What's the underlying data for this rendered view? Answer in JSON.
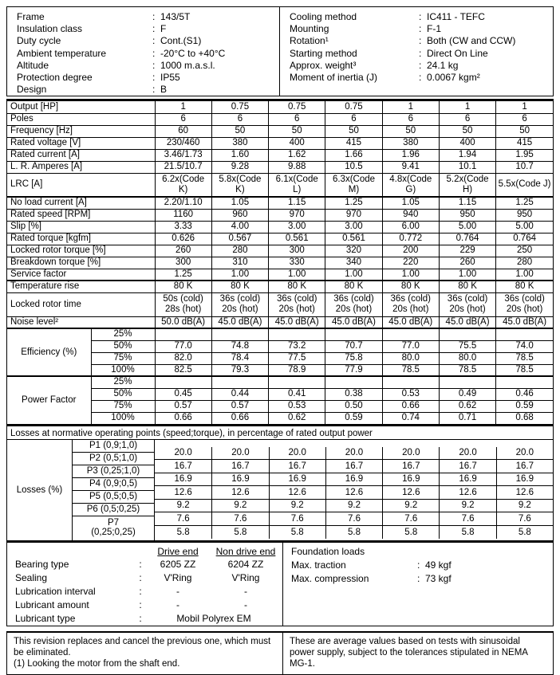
{
  "punct": {
    "colon": ":"
  },
  "info_left": {
    "rows": [
      {
        "label": "Frame",
        "value": "143/5T"
      },
      {
        "label": "Insulation class",
        "value": "F"
      },
      {
        "label": "Duty cycle",
        "value": "Cont.(S1)"
      },
      {
        "label": "Ambient temperature",
        "value": "-20°C to +40°C"
      },
      {
        "label": "Altitude",
        "value": "1000 m.a.s.l."
      },
      {
        "label": "Protection degree",
        "value": "IP55"
      },
      {
        "label": "Design",
        "value": "B"
      }
    ]
  },
  "info_right": {
    "rows": [
      {
        "label": "Cooling method",
        "value": "IC411 - TEFC"
      },
      {
        "label": "Mounting",
        "value": "F-1"
      },
      {
        "label": "Rotation¹",
        "value": "Both (CW and CCW)"
      },
      {
        "label": "Starting method",
        "value": "Direct On Line"
      },
      {
        "label": "Approx. weight³",
        "value": "24.1 kg"
      },
      {
        "label": "Moment of inertia (J)",
        "value": "0.0067 kgm²"
      }
    ]
  },
  "spec_table": {
    "rows": [
      {
        "label": "Output [HP]",
        "values": [
          "1",
          "0.75",
          "0.75",
          "0.75",
          "1",
          "1",
          "1"
        ]
      },
      {
        "label": "Poles",
        "values": [
          "6",
          "6",
          "6",
          "6",
          "6",
          "6",
          "6"
        ]
      },
      {
        "label": "Frequency [Hz]",
        "values": [
          "60",
          "50",
          "50",
          "50",
          "50",
          "50",
          "50"
        ]
      },
      {
        "label": "Rated voltage [V]",
        "values": [
          "230/460",
          "380",
          "400",
          "415",
          "380",
          "400",
          "415"
        ]
      },
      {
        "label": "Rated current [A]",
        "values": [
          "3.46/1.73",
          "1.60",
          "1.62",
          "1.66",
          "1.96",
          "1.94",
          "1.95"
        ]
      },
      {
        "label": "L. R. Amperes [A]",
        "values": [
          "21.5/10.7",
          "9.28",
          "9.88",
          "10.5",
          "9.41",
          "10.1",
          "10.7"
        ]
      },
      {
        "label": "LRC [A]",
        "tall": true,
        "values": [
          "6.2x(Code K)",
          "5.8x(Code K)",
          "6.1x(Code L)",
          "6.3x(Code\nM)",
          "4.8x(Code\nG)",
          "5.2x(Code H)",
          "5.5x(Code J)"
        ]
      },
      {
        "label": "No load current [A]",
        "thick": true,
        "values": [
          "2.20/1.10",
          "1.05",
          "1.15",
          "1.25",
          "1.05",
          "1.15",
          "1.25"
        ]
      },
      {
        "label": "Rated speed [RPM]",
        "values": [
          "1160",
          "960",
          "970",
          "970",
          "940",
          "950",
          "950"
        ]
      },
      {
        "label": "Slip [%]",
        "values": [
          "3.33",
          "4.00",
          "3.00",
          "3.00",
          "6.00",
          "5.00",
          "5.00"
        ]
      },
      {
        "label": "Rated torque [kgfm]",
        "values": [
          "0.626",
          "0.567",
          "0.561",
          "0.561",
          "0.772",
          "0.764",
          "0.764"
        ]
      },
      {
        "label": "Locked rotor torque [%]",
        "values": [
          "260",
          "280",
          "300",
          "320",
          "200",
          "229",
          "250"
        ]
      },
      {
        "label": "Breakdown torque [%]",
        "values": [
          "300",
          "310",
          "330",
          "340",
          "220",
          "260",
          "280"
        ]
      },
      {
        "label": "Service factor",
        "values": [
          "1.25",
          "1.00",
          "1.00",
          "1.00",
          "1.00",
          "1.00",
          "1.00"
        ]
      },
      {
        "label": "Temperature rise",
        "thick": true,
        "values": [
          "80 K",
          "80 K",
          "80 K",
          "80 K",
          "80 K",
          "80 K",
          "80 K"
        ]
      },
      {
        "label": "Locked rotor time",
        "tall": true,
        "values": [
          "50s (cold)\n28s (hot)",
          "36s (cold)\n20s (hot)",
          "36s (cold)\n20s (hot)",
          "36s (cold)\n20s (hot)",
          "36s (cold)\n20s (hot)",
          "36s (cold)\n20s (hot)",
          "36s (cold)\n20s (hot)"
        ]
      },
      {
        "label": "Noise level²",
        "values": [
          "50.0 dB(A)",
          "45.0 dB(A)",
          "45.0 dB(A)",
          "45.0 dB(A)",
          "45.0 dB(A)",
          "45.0 dB(A)",
          "45.0 dB(A)"
        ]
      }
    ]
  },
  "performance": {
    "groups": [
      {
        "label": "Efficiency (%)",
        "rows": [
          {
            "load": "25%",
            "values": [
              "",
              "",
              "",
              "",
              "",
              "",
              ""
            ]
          },
          {
            "load": "50%",
            "values": [
              "77.0",
              "74.8",
              "73.2",
              "70.7",
              "77.0",
              "75.5",
              "74.0"
            ]
          },
          {
            "load": "75%",
            "values": [
              "82.0",
              "78.4",
              "77.5",
              "75.8",
              "80.0",
              "80.0",
              "78.5"
            ]
          },
          {
            "load": "100%",
            "values": [
              "82.5",
              "79.3",
              "78.9",
              "77.9",
              "78.5",
              "78.5",
              "78.5"
            ]
          }
        ]
      },
      {
        "label": "Power Factor",
        "rows": [
          {
            "load": "25%",
            "values": [
              "",
              "",
              "",
              "",
              "",
              "",
              ""
            ]
          },
          {
            "load": "50%",
            "values": [
              "0.45",
              "0.44",
              "0.41",
              "0.38",
              "0.53",
              "0.49",
              "0.46"
            ]
          },
          {
            "load": "75%",
            "values": [
              "0.57",
              "0.57",
              "0.53",
              "0.50",
              "0.66",
              "0.62",
              "0.59"
            ]
          },
          {
            "load": "100%",
            "values": [
              "0.66",
              "0.66",
              "0.62",
              "0.59",
              "0.74",
              "0.71",
              "0.68"
            ]
          }
        ]
      }
    ]
  },
  "losses": {
    "header": "Losses at normative operating points (speed;torque), in percentage of rated output power",
    "label": "Losses (%)",
    "rows": [
      {
        "point": "P1 (0,9;1,0)",
        "values": [
          "20.0",
          "20.0",
          "20.0",
          "20.0",
          "20.0",
          "20.0",
          "20.0"
        ]
      },
      {
        "point": "P2 (0,5;1,0)",
        "values": [
          "16.7",
          "16.7",
          "16.7",
          "16.7",
          "16.7",
          "16.7",
          "16.7"
        ]
      },
      {
        "point": "P3 (0,25;1,0)",
        "values": [
          "16.9",
          "16.9",
          "16.9",
          "16.9",
          "16.9",
          "16.9",
          "16.9"
        ]
      },
      {
        "point": "P4 (0,9;0,5)",
        "values": [
          "12.6",
          "12.6",
          "12.6",
          "12.6",
          "12.6",
          "12.6",
          "12.6"
        ]
      },
      {
        "point": "P5 (0,5;0,5)",
        "values": [
          "9.2",
          "9.2",
          "9.2",
          "9.2",
          "9.2",
          "9.2",
          "9.2"
        ]
      },
      {
        "point": "P6 (0,5;0,25)",
        "values": [
          "7.6",
          "7.6",
          "7.6",
          "7.6",
          "7.6",
          "7.6",
          "7.6"
        ]
      },
      {
        "point": "P7\n(0,25;0,25)",
        "values": [
          "5.8",
          "5.8",
          "5.8",
          "5.8",
          "5.8",
          "5.8",
          "5.8"
        ]
      }
    ]
  },
  "bearings": {
    "col_headers": [
      "Drive end",
      "Non drive end"
    ],
    "rows": [
      {
        "label": "Bearing type",
        "v1": "6205 ZZ",
        "v2": "6204 ZZ"
      },
      {
        "label": "Sealing",
        "v1": "V'Ring",
        "v2": "V'Ring"
      },
      {
        "label": "Lubrication interval",
        "v1": "-",
        "v2": "-"
      },
      {
        "label": "Lubricant amount",
        "v1": "-",
        "v2": "-"
      },
      {
        "label": "Lubricant type",
        "span": "Mobil Polyrex EM"
      }
    ]
  },
  "foundation": {
    "title": "Foundation loads",
    "rows": [
      {
        "label": "Max. traction",
        "value": "49 kgf"
      },
      {
        "label": "Max. compression",
        "value": "73 kgf"
      }
    ]
  },
  "notes": {
    "left": [
      "This revision replaces and cancel the previous one, which must be eliminated.",
      "(1) Looking the motor from the shaft end."
    ],
    "right": "These are average values based on tests with sinusoidal power supply, subject to the tolerances stipulated in NEMA MG-1."
  }
}
